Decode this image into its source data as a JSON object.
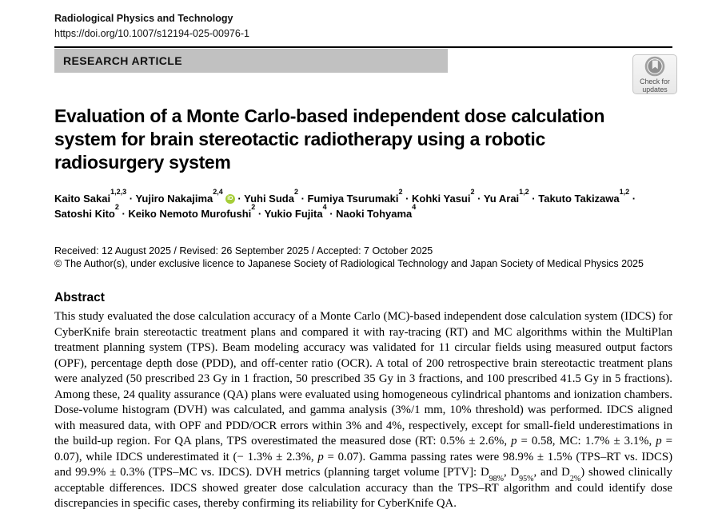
{
  "header": {
    "journal_name": "Radiological Physics and Technology",
    "doi": "https://doi.org/10.1007/s12194-025-00976-1",
    "article_type": "RESEARCH ARTICLE",
    "check_updates_label": "Check for updates"
  },
  "title": "Evaluation of a Monte Carlo-based independent dose calculation system for brain stereotactic radiotherapy using a robotic radiosurgery system",
  "authors": [
    {
      "name": "Kaito Sakai",
      "sup": "1,2,3"
    },
    {
      "name": "Yujiro Nakajima",
      "sup": "2,4",
      "orcid": true
    },
    {
      "name": "Yuhi Suda",
      "sup": "2"
    },
    {
      "name": "Fumiya Tsurumaki",
      "sup": "2"
    },
    {
      "name": "Kohki Yasui",
      "sup": "2"
    },
    {
      "name": "Yu Arai",
      "sup": "1,2"
    },
    {
      "name": "Takuto Takizawa",
      "sup": "1,2"
    },
    {
      "name": "Satoshi Kito",
      "sup": "2"
    },
    {
      "name": "Keiko Nemoto Murofushi",
      "sup": "2"
    },
    {
      "name": "Yukio Fujita",
      "sup": "4"
    },
    {
      "name": "Naoki Tohyama",
      "sup": "4"
    }
  ],
  "dates_line": "Received: 12 August 2025 / Revised: 26 September 2025 / Accepted: 7 October 2025",
  "copyright_line": "© The Author(s), under exclusive licence to Japanese Society of Radiological Technology and Japan Society of Medical Physics 2025",
  "abstract": {
    "heading": "Abstract",
    "segments": [
      {
        "t": "This study evaluated the dose calculation accuracy of a Monte Carlo (MC)-based independent dose calculation system (IDCS) for CyberKnife brain stereotactic treatment plans and compared it with ray-tracing (RT) and MC algorithms within the MultiPlan treatment planning system (TPS). Beam modeling accuracy was validated for 11 circular fields using measured output factors (OPF), percentage depth dose (PDD), and off-center ratio (OCR). A total of 200 retrospective brain stereotactic treatment plans were analyzed (50 prescribed 23 Gy in 1 fraction, 50 prescribed 35 Gy in 3 fractions, and 100 prescribed 41.5 Gy in 5 fractions). Among these, 24 quality assurance (QA) plans were evaluated using homogeneous cylindrical phantoms and ionization chambers. Dose-volume histogram (DVH) was calculated, and gamma analysis (3%/1 mm, 10% threshold) was performed. IDCS aligned with measured data, with OPF and PDD/OCR errors within 3% and 4%, respectively, except for small-field underestimations in the build-up region. For QA plans, TPS overestimated the measured dose (RT: 0.5% ± 2.6%, "
      },
      {
        "i": "p"
      },
      {
        "t": " = 0.58, MC: 1.7% ± 3.1%, "
      },
      {
        "i": "p"
      },
      {
        "t": " = 0.07), while IDCS underestimated it (− 1.3% ± 2.3%, "
      },
      {
        "i": "p"
      },
      {
        "t": " = 0.07). Gamma passing rates were 98.9% ± 1.5% (TPS–RT vs. IDCS) and 99.9% ± 0.3% (TPS–MC vs. IDCS). DVH metrics (planning target volume [PTV]: D"
      },
      {
        "sub": "98%"
      },
      {
        "t": ", D"
      },
      {
        "sub": "95%"
      },
      {
        "t": ", and D"
      },
      {
        "sub": "2%"
      },
      {
        "t": ") showed clinically acceptable differences. IDCS showed greater dose calculation accuracy than the TPS–RT algorithm and could identify dose discrepancies in specific cases, thereby confirming its reliability for CyberKnife QA."
      }
    ]
  },
  "colors": {
    "article_type_bar_bg": "#c1c1c1",
    "orcid_green": "#a6ce39",
    "rule": "#000000",
    "badge_bg": "#f0f0f0",
    "text": "#000000"
  }
}
